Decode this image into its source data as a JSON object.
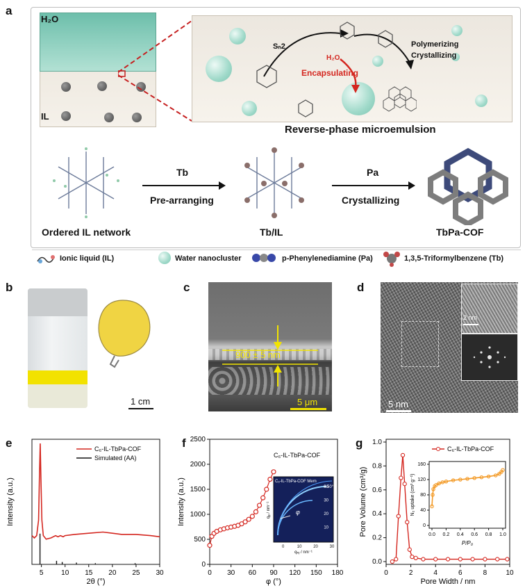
{
  "panels": {
    "a": {
      "letter": "a",
      "h2o_label": "H₂O",
      "il_label": "IL",
      "sn2": "Sₙ2",
      "h2o_small": "H₂O",
      "encapsulating": "Encapsulating",
      "polymerizing": "Polymerizing",
      "crystallizing_top": "Crystallizing",
      "microemulsion_title": "Reverse-phase microemulsion",
      "tb": "Tb",
      "pre_arranging": "Pre-arranging",
      "pa": "Pa",
      "crystallizing": "Crystallizing",
      "ordered_il": "Ordered IL network",
      "tb_il": "Tb/IL",
      "tbpa_cof": "TbPa-COF",
      "legend": [
        "Ionic liquid (IL)",
        "Water nanocluster",
        "p-Phenylenediamine (Pa)",
        "1,3,5-Triformylbenzene (Tb)"
      ]
    },
    "b": {
      "letter": "b",
      "scale": "1 cm"
    },
    "c": {
      "letter": "c",
      "thickness": "900 ± 5 nm",
      "scale": "5 μm"
    },
    "d": {
      "letter": "d",
      "inset_scale": "2 nm",
      "scale": "5 nm"
    },
    "e": {
      "letter": "e"
    },
    "f": {
      "letter": "f"
    },
    "g": {
      "letter": "g"
    }
  },
  "colors": {
    "red": "#d4261f",
    "orange": "#f39a26",
    "black": "#111111",
    "water": "#8fd2c2"
  },
  "chart_data": [
    {
      "panel": "e",
      "type": "line",
      "xlabel": "2θ (°)",
      "ylabel": "Intensity (a.u.)",
      "xlim": [
        3,
        30
      ],
      "xticks": [
        5,
        10,
        15,
        20,
        25,
        30
      ],
      "series": [
        {
          "name": "C₆-IL-TbPa-COF",
          "color": "#d4261f",
          "x": [
            3,
            3.5,
            4,
            4.4,
            4.6,
            4.75,
            4.9,
            5.1,
            5.4,
            6,
            7,
            8,
            8.5,
            9,
            9.6,
            10,
            12,
            15,
            18,
            20,
            22,
            25,
            28,
            30
          ],
          "y": [
            0.22,
            0.2,
            0.22,
            0.35,
            0.75,
            1.0,
            0.7,
            0.35,
            0.22,
            0.19,
            0.2,
            0.22,
            0.21,
            0.22,
            0.21,
            0.22,
            0.23,
            0.24,
            0.25,
            0.24,
            0.23,
            0.23,
            0.22,
            0.21
          ]
        },
        {
          "name": "Simulated (AA)",
          "color": "#111111",
          "sticks": [
            4.7,
            8.2,
            9.4,
            12.4,
            16.4,
            24.8
          ],
          "heights": [
            0.26,
            0.03,
            0.02,
            0.015,
            0.01,
            0.01
          ]
        }
      ]
    },
    {
      "panel": "f",
      "type": "scatter",
      "title": "C₆-IL-TbPa-COF",
      "xlabel": "φ (°)",
      "ylabel": "Intensity (a.u.)",
      "xlim": [
        0,
        180
      ],
      "ylim": [
        0,
        2500
      ],
      "xticks": [
        0,
        30,
        60,
        90,
        120,
        150,
        180
      ],
      "yticks": [
        0,
        500,
        1000,
        1500,
        2000,
        2500
      ],
      "x": [
        0,
        3,
        6,
        10,
        15,
        20,
        25,
        30,
        35,
        40,
        45,
        50,
        55,
        60,
        65,
        70,
        75,
        80,
        85,
        90
      ],
      "y": [
        380,
        560,
        620,
        660,
        690,
        710,
        730,
        745,
        760,
        780,
        810,
        850,
        900,
        960,
        1050,
        1180,
        1330,
        1500,
        1700,
        1850
      ],
      "inset": {
        "title": "C₆-IL-TbPa-COF Mem",
        "angle": "0.50°",
        "xlabel": "qₓᵧ / nm⁻¹",
        "ylabel": "qᵩ / nm⁻¹",
        "xticks": [
          0,
          10,
          20,
          30
        ],
        "yticks": [
          10,
          20,
          30,
          40
        ],
        "phi": "φ"
      }
    },
    {
      "panel": "g",
      "type": "line",
      "xlabel": "Pore Width / nm",
      "ylabel": "Pore Volume (cm³/g)",
      "xlim": [
        0,
        10
      ],
      "ylim": [
        0,
        1.0
      ],
      "xticks": [
        0,
        2,
        4,
        6,
        8,
        10
      ],
      "yticks": [
        0.0,
        0.2,
        0.4,
        0.6,
        0.8,
        1.0
      ],
      "series": [
        {
          "name": "C₆-IL-TbPa-COF",
          "color": "#d4261f",
          "x": [
            0.5,
            0.8,
            1.0,
            1.2,
            1.35,
            1.5,
            1.7,
            1.9,
            2.1,
            2.4,
            3,
            4,
            5,
            6,
            7,
            8,
            9,
            9.8
          ],
          "y": [
            0.0,
            0.02,
            0.38,
            0.7,
            0.89,
            0.65,
            0.33,
            0.1,
            0.04,
            0.03,
            0.02,
            0.02,
            0.02,
            0.02,
            0.02,
            0.02,
            0.02,
            0.02
          ]
        }
      ],
      "inset": {
        "type": "scatter",
        "xlabel": "P/P₀",
        "ylabel": "N₂ uptake (cm³ g⁻¹)",
        "xlim": [
          0,
          1.0
        ],
        "ylim": [
          0,
          160
        ],
        "xticks": [
          0.0,
          0.2,
          0.4,
          0.6,
          0.8,
          1.0
        ],
        "yticks": [
          0,
          40,
          80,
          120,
          160
        ],
        "x": [
          0.0,
          0.01,
          0.02,
          0.04,
          0.06,
          0.1,
          0.15,
          0.2,
          0.3,
          0.4,
          0.5,
          0.6,
          0.7,
          0.8,
          0.9,
          0.95,
          0.98,
          1.0
        ],
        "y": [
          50,
          80,
          95,
          103,
          106,
          110,
          113,
          115,
          118,
          120,
          122,
          124,
          126,
          128,
          131,
          135,
          140,
          145
        ],
        "color": "#f39a26"
      }
    }
  ]
}
